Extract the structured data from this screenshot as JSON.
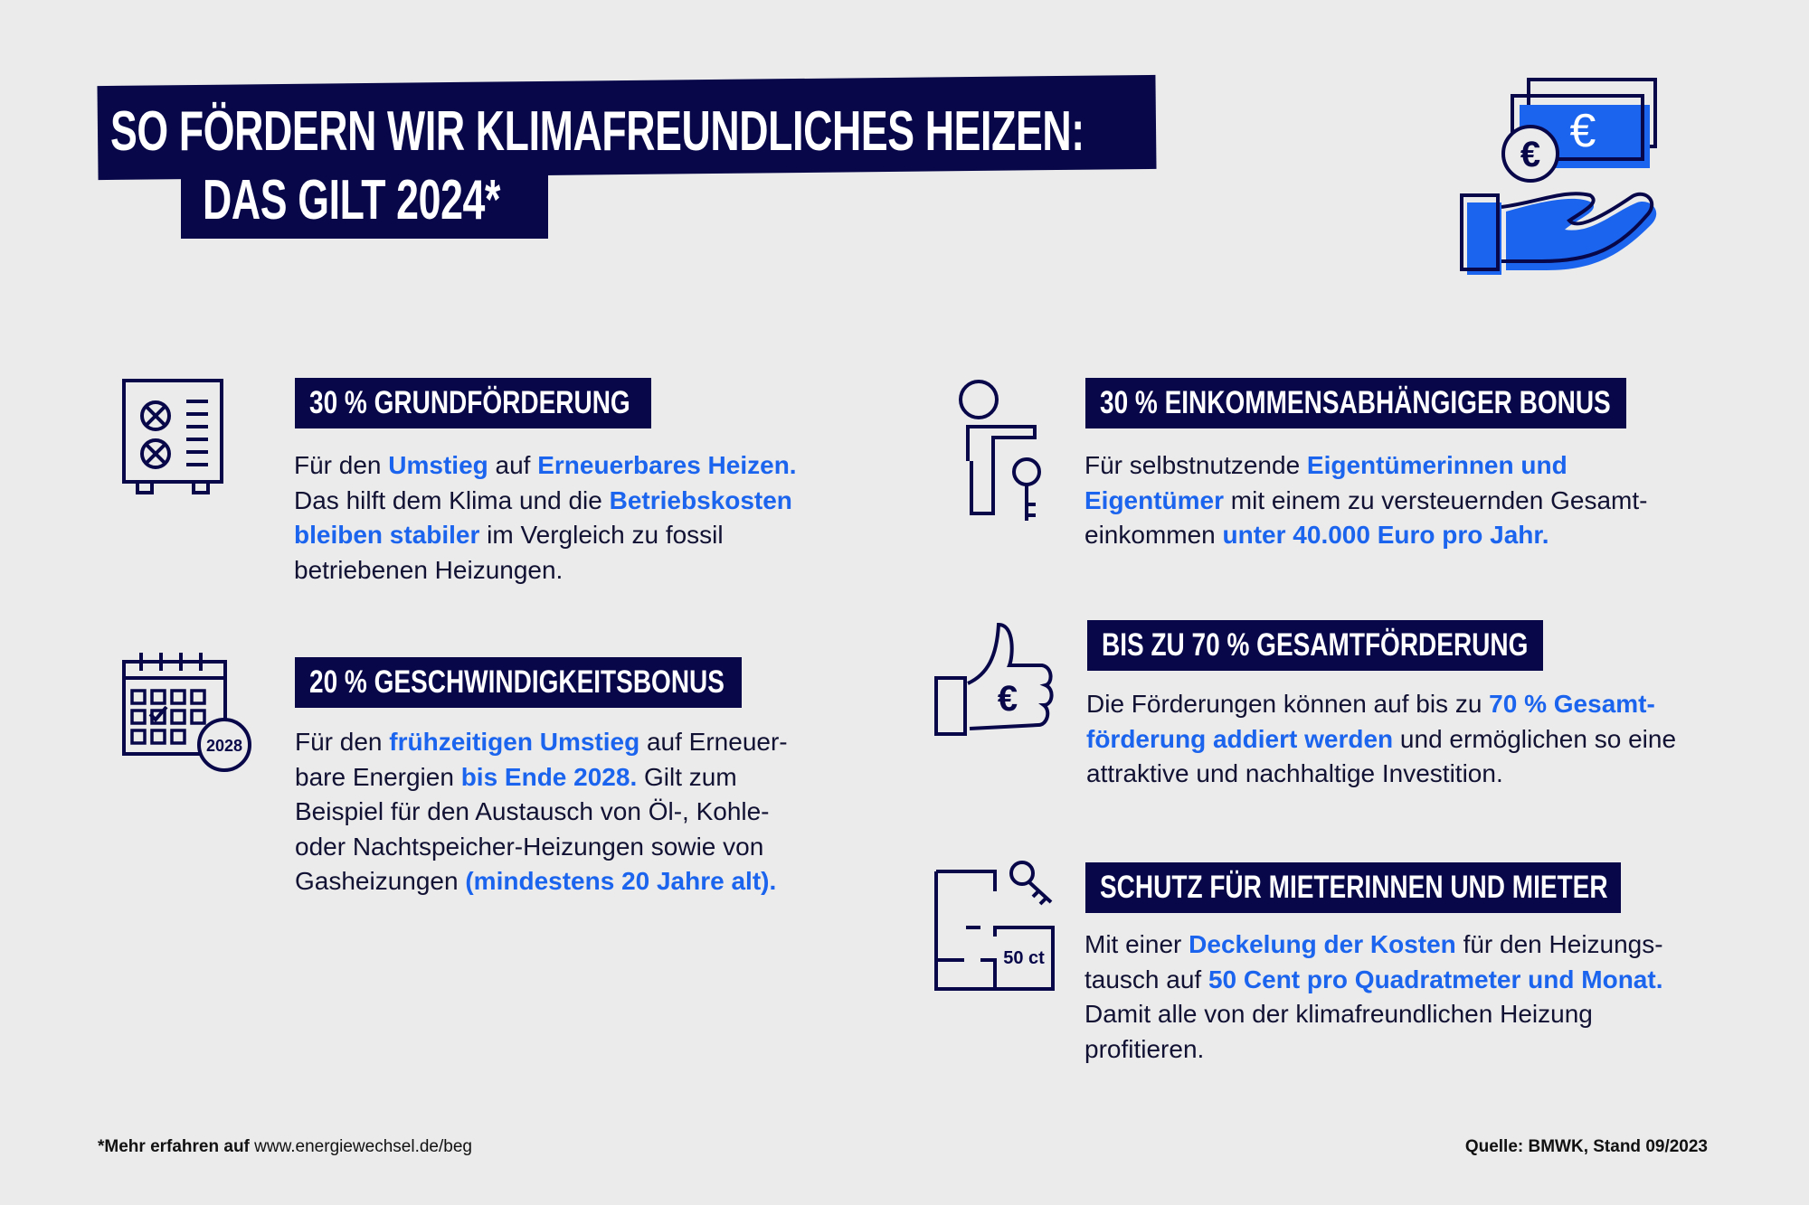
{
  "title": {
    "line1": "SO FÖRDERN WIR KLIMAFREUNDLICHES HEIZEN:",
    "line2": "DAS GILT 2024*"
  },
  "colors": {
    "navy": "#07074a",
    "blue": "#1b64ee",
    "background": "#ebebeb"
  },
  "sections": [
    {
      "heading": "30 % GRUNDFÖRDERUNG",
      "icon": "heat-pump-icon",
      "lines": [
        [
          {
            "t": "Für den "
          },
          {
            "t": "Umstieg",
            "hl": 1
          },
          {
            "t": " auf "
          },
          {
            "t": "Erneuerbares Heizen.",
            "hl": 1
          }
        ],
        [
          {
            "t": "Das hilft dem Klima und die "
          },
          {
            "t": "Betriebskosten",
            "hl": 1
          }
        ],
        [
          {
            "t": "bleiben stabiler",
            "hl": 1
          },
          {
            "t": " im Vergleich zu fossil"
          }
        ],
        [
          {
            "t": "betriebenen Heizungen."
          }
        ]
      ]
    },
    {
      "heading": "20 % GESCHWINDIGKEITSBONUS",
      "icon": "calendar-icon",
      "icon_label": "2028",
      "lines": [
        [
          {
            "t": "Für den "
          },
          {
            "t": "frühzeitigen Umstieg",
            "hl": 1
          },
          {
            "t": " auf Erneuer-"
          }
        ],
        [
          {
            "t": "bare Energien "
          },
          {
            "t": "bis Ende 2028.",
            "hl": 1
          },
          {
            "t": " Gilt zum"
          }
        ],
        [
          {
            "t": "Beispiel für den Austausch von Öl-, Kohle-"
          }
        ],
        [
          {
            "t": "oder Nachtspeicher-Heizungen sowie von"
          }
        ],
        [
          {
            "t": "Gasheizungen "
          },
          {
            "t": "(mindestens 20 Jahre alt).",
            "hl": 1
          }
        ]
      ]
    },
    {
      "heading": "30 % EINKOMMENSABHÄNGIGER BONUS",
      "icon": "owner-key-icon",
      "lines": [
        [
          {
            "t": "Für selbstnutzende "
          },
          {
            "t": "Eigentümerinnen und",
            "hl": 1
          }
        ],
        [
          {
            "t": "Eigentümer",
            "hl": 1
          },
          {
            "t": " mit einem zu versteuernden Gesamt-"
          }
        ],
        [
          {
            "t": "einkommen "
          },
          {
            "t": "unter 40.000 Euro pro Jahr.",
            "hl": 1
          }
        ]
      ]
    },
    {
      "heading": "BIS ZU 70 % GESAMTFÖRDERUNG",
      "icon": "thumbs-up-euro-icon",
      "lines": [
        [
          {
            "t": "Die Förderungen können auf bis zu "
          },
          {
            "t": "70 % Gesamt-",
            "hl": 1
          }
        ],
        [
          {
            "t": "förderung addiert werden",
            "hl": 1
          },
          {
            "t": " und ermöglichen so eine"
          }
        ],
        [
          {
            "t": "attraktive und nachhaltige Investition."
          }
        ]
      ]
    },
    {
      "heading": "SCHUTZ FÜR MIETERINNEN UND MIETER",
      "icon": "floorplan-key-icon",
      "icon_label": "50 ct",
      "lines": [
        [
          {
            "t": "Mit einer "
          },
          {
            "t": "Deckelung der Kosten",
            "hl": 1
          },
          {
            "t": " für den Heizungs-"
          }
        ],
        [
          {
            "t": "tausch auf "
          },
          {
            "t": "50 Cent pro Quadratmeter und Monat.",
            "hl": 1
          }
        ],
        [
          {
            "t": "Damit alle von der klimafreundlichen Heizung"
          }
        ],
        [
          {
            "t": "profitieren."
          }
        ]
      ]
    }
  ],
  "footer": {
    "note_bold": "*Mehr erfahren auf",
    "note_link": "www.energiewechsel.de/beg",
    "source": "Quelle: BMWK, Stand 09/2023"
  }
}
